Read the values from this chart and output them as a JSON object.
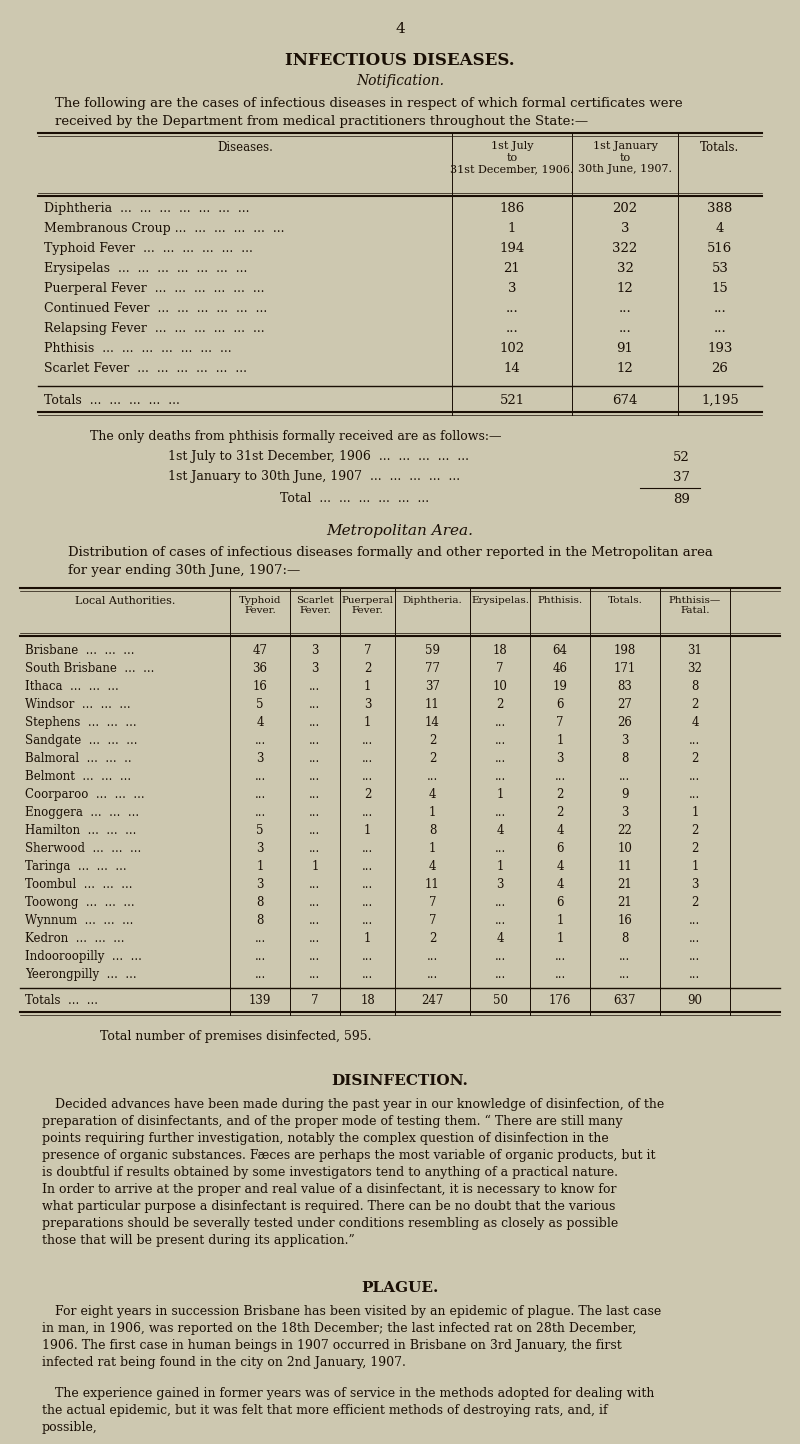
{
  "bg_color": "#cdc8b0",
  "text_color": "#1a0f05",
  "page_number": "4",
  "title1": "INFECTIOUS DISEASES.",
  "title2": "Notification.",
  "intro_line1": "The following are the cases of infectious diseases in respect of which formal certificates were",
  "intro_line2": "received by the Department from medical practitioners throughout the State:—",
  "table1_col0_header": "Diseases.",
  "table1_col1_header": "1st July\nto\n31st December, 1906.",
  "table1_col2_header": "1st January\nto\n30th June, 1907.",
  "table1_col3_header": "Totals.",
  "table1_rows": [
    [
      "Diphtheria  ...  ...  ...  ...  ...  ...  ...",
      "186",
      "202",
      "388"
    ],
    [
      "Membranous Croup ...  ...  ...  ...  ...  ...",
      "1",
      "3",
      "4"
    ],
    [
      "Typhoid Fever  ...  ...  ...  ...  ...  ...",
      "194",
      "322",
      "516"
    ],
    [
      "Erysipelas  ...  ...  ...  ...  ...  ...  ...",
      "21",
      "32",
      "53"
    ],
    [
      "Puerperal Fever  ...  ...  ...  ...  ...  ...",
      "3",
      "12",
      "15"
    ],
    [
      "Continued Fever  ...  ...  ...  ...  ...  ...",
      "...",
      "...",
      "..."
    ],
    [
      "Relapsing Fever  ...  ...  ...  ...  ...  ...",
      "...",
      "...",
      "..."
    ],
    [
      "Phthisis  ...  ...  ...  ...  ...  ...  ...",
      "102",
      "91",
      "193"
    ],
    [
      "Scarlet Fever  ...  ...  ...  ...  ...  ...",
      "14",
      "12",
      "26"
    ]
  ],
  "table1_totals_label": "Totals  ...  ...  ...  ...  ...",
  "table1_totals_vals": [
    "521",
    "674",
    "1,195"
  ],
  "phthisis_text": "The only deaths from phthisis formally received are as follows:—",
  "phthisis_rows": [
    [
      "1st July to 31st December, 1906  ...  ...  ...  ...  ...",
      "52"
    ],
    [
      "1st January to 30th June, 1907  ...  ...  ...  ...  ...",
      "37"
    ]
  ],
  "phthisis_total_label": "Total  ...  ...  ...  ...  ...  ...",
  "phthisis_total_val": "89",
  "metro_title": "Metropolitan Area.",
  "metro_intro_line1": "Distribution of cases of infectious diseases formally and other reported in the Metropolitan area",
  "metro_intro_line2": "for year ending 30th June, 1907:—",
  "table2_headers": [
    "Local Authorities.",
    "Typhoid\nFever.",
    "Scarlet\nFever.",
    "Puerperal\nFever.",
    "Diphtheria.",
    "Erysipelas.",
    "Phthisis.",
    "Totals.",
    "Phthisis—\nFatal."
  ],
  "table2_rows": [
    [
      "Brisbane  ...  ...  ...",
      "47",
      "3",
      "7",
      "59",
      "18",
      "64",
      "198",
      "31"
    ],
    [
      "South Brisbane  ...  ...",
      "36",
      "3",
      "2",
      "77",
      "7",
      "46",
      "171",
      "32"
    ],
    [
      "Ithaca  ...  ...  ...",
      "16",
      "...",
      "1",
      "37",
      "10",
      "19",
      "83",
      "8"
    ],
    [
      "Windsor  ...  ...  ...",
      "5",
      "...",
      "3",
      "11",
      "2",
      "6",
      "27",
      "2"
    ],
    [
      "Stephens  ...  ...  ...",
      "4",
      "...",
      "1",
      "14",
      "...",
      "7",
      "26",
      "4"
    ],
    [
      "Sandgate  ...  ...  ...",
      "...",
      "...",
      "...",
      "2",
      "...",
      "1",
      "3",
      "..."
    ],
    [
      "Balmoral  ...  ...  ..",
      "3",
      "...",
      "...",
      "2",
      "...",
      "3",
      "8",
      "2"
    ],
    [
      "Belmont  ...  ...  ...",
      "...",
      "...",
      "...",
      "...",
      "...",
      "...",
      "...",
      "..."
    ],
    [
      "Coorparoo  ...  ...  ...",
      "...",
      "...",
      "2",
      "4",
      "1",
      "2",
      "9",
      "..."
    ],
    [
      "Enoggera  ...  ...  ...",
      "...",
      "...",
      "...",
      "1",
      "...",
      "2",
      "3",
      "1"
    ],
    [
      "Hamilton  ...  ...  ...",
      "5",
      "...",
      "1",
      "8",
      "4",
      "4",
      "22",
      "2"
    ],
    [
      "Sherwood  ...  ...  ...",
      "3",
      "...",
      "...",
      "1",
      "...",
      "6",
      "10",
      "2"
    ],
    [
      "Taringa  ...  ...  ...",
      "1",
      "1",
      "...",
      "4",
      "1",
      "4",
      "11",
      "1"
    ],
    [
      "Toombul  ...  ...  ...",
      "3",
      "...",
      "...",
      "11",
      "3",
      "4",
      "21",
      "3"
    ],
    [
      "Toowong  ...  ...  ...",
      "8",
      "...",
      "...",
      "7",
      "...",
      "6",
      "21",
      "2"
    ],
    [
      "Wynnum  ...  ...  ...",
      "8",
      "...",
      "...",
      "7",
      "...",
      "1",
      "16",
      "..."
    ],
    [
      "Kedron  ...  ...  ...",
      "...",
      "...",
      "1",
      "2",
      "4",
      "1",
      "8",
      "..."
    ],
    [
      "Indooroopilly  ...  ...",
      "...",
      "...",
      "...",
      "...",
      "...",
      "...",
      "...",
      "..."
    ],
    [
      "Yeerongpilly  ...  ...",
      "...",
      "...",
      "...",
      "...",
      "...",
      "...",
      "...",
      "..."
    ]
  ],
  "table2_totals_label": "Totals  ...  ...",
  "table2_totals_vals": [
    "139",
    "7",
    "18",
    "247",
    "50",
    "176",
    "637",
    "90"
  ],
  "disinfected_text": "Total number of premises disinfected, 595.",
  "disinfection_title": "DISINFECTION.",
  "disinfection_para": "Decided advances have been made during the past year in our knowledge of disinfection, of the preparation of disinfectants, and of the proper mode of testing them. “ There are still many points requiring further investigation, notably the complex question of disinfection in the presence of organic substances. Fæces are perhaps the most variable of organic products, but it is doubtful if results obtained by some investigators tend to anything of a practical nature. In order to arrive at the proper and real value of a disinfectant, it is necessary to know for what particular purpose a disinfectant is required. There can be no doubt that the various preparations should be severally tested under conditions resembling as closely as possible those that will be present during its application.”",
  "plague_title": "PLAGUE.",
  "plague_para1": "For eight years in succession Brisbane has been visited by an epidemic of plague. The last case in man, in 1906, was reported on the 18th December; the last infected rat on 28th December, 1906. The first case in human beings in 1907 occurred in Brisbane on 3rd January, the first infected rat being found in the city on 2nd January, 1907.",
  "plague_para2": "The experience gained in former years was of service in the methods adopted for dealing with the actual epidemic, but it was felt that more efficient methods of destroying rats, and, if possible,"
}
